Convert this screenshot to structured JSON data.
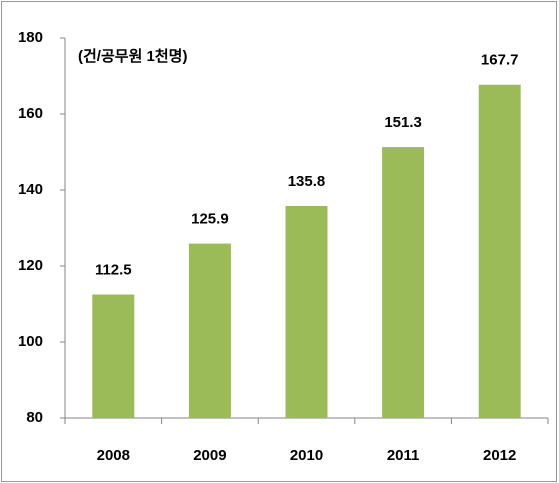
{
  "chart_data": {
    "type": "bar",
    "y_label": "(건/공무원 1천명)",
    "categories": [
      "2008",
      "2009",
      "2010",
      "2011",
      "2012"
    ],
    "values": [
      112.5,
      125.9,
      135.8,
      151.3,
      167.7
    ],
    "color": "#9bbb59",
    "ylim": [
      80,
      180
    ],
    "yticks": [
      80,
      100,
      120,
      140,
      160,
      180
    ],
    "grid": false
  }
}
